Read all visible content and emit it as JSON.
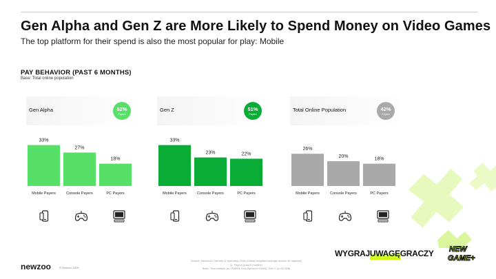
{
  "title": "Gen Alpha and Gen Z are More Likely to Spend Money on Video Games",
  "subtitle": "The top platform for their spend is also the most popular for play: Mobile",
  "section_title": "PAY BEHAVIOR (PAST 6 MONTHS)",
  "base_note": "Base: Total online population",
  "chart_data": {
    "type": "bar",
    "title": "Pay behavior (past 6 months)",
    "categories": [
      "Mobile Payers",
      "Console Payers",
      "PC Payers"
    ],
    "ylim": [
      0,
      40
    ],
    "series": [
      {
        "name": "Gen Alpha",
        "payers_pct_label": "52%",
        "payers_sub": "Payers",
        "color": "#56e067",
        "values": [
          33,
          27,
          18
        ],
        "labels": [
          "33%",
          "27%",
          "18%"
        ]
      },
      {
        "name": "Gen Z",
        "payers_pct_label": "51%",
        "payers_sub": "Payers",
        "color": "#09ad36",
        "values": [
          33,
          23,
          22
        ],
        "labels": [
          "33%",
          "23%",
          "22%"
        ]
      },
      {
        "name": "Total Online Population",
        "payers_pct_label": "42%",
        "payers_sub": "Payers",
        "color": "#a9a9a9",
        "values": [
          26,
          20,
          18
        ],
        "labels": [
          "26%",
          "20%",
          "18%"
        ]
      }
    ]
  },
  "icons": [
    "mobile-icon",
    "gamepad-icon",
    "pc-icon"
  ],
  "footer": {
    "logo": "newzoo",
    "copyright": "© Newzoo 2025",
    "source_lines": [
      "Source: Newzoo's Gamers & Spenders 2025 (Global weighted average across 36 markets)",
      "Q. Payers (past 6 months)",
      "Base: Total sample (n=73,880), Gen Alpha (n=3,683), Gen Z (n=20,508)"
    ]
  },
  "brand": {
    "part1": "WYGRAJ",
    "part2": "UWAGĘ",
    "part3": "GRACZY"
  },
  "newgame": {
    "line1": "NEW",
    "line2": "GAME+"
  },
  "colors": {
    "alpha": "#56e067",
    "genz": "#09ad36",
    "total": "#a9a9a9",
    "accent": "#c6ff00"
  }
}
